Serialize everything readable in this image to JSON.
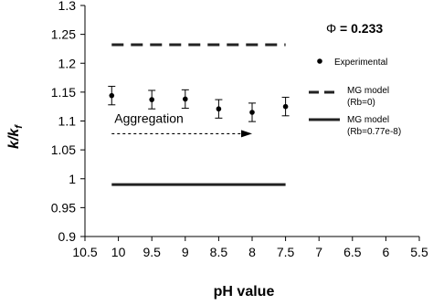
{
  "chart_data": {
    "type": "scatter",
    "xlabel": "pH value",
    "ylabel_main": "k/k",
    "ylabel_sub": "f",
    "x_reversed": true,
    "xlim": [
      10.5,
      5.5
    ],
    "ylim": [
      0.9,
      1.3
    ],
    "x_ticks": [
      10.5,
      10,
      9.5,
      9,
      8.5,
      8,
      7.5,
      7,
      6.5,
      6,
      5.5
    ],
    "y_ticks": [
      0.9,
      0.95,
      1,
      1.05,
      1.1,
      1.15,
      1.2,
      1.25,
      1.3
    ],
    "x_tick_labels": [
      "10.5",
      "10",
      "9.5",
      "9",
      "8.5",
      "8",
      "7.5",
      "7",
      "6.5",
      "6",
      "5.5"
    ],
    "y_tick_labels": [
      "0.9",
      "0.95",
      "1",
      "1.05",
      "1.1",
      "1.15",
      "1.2",
      "1.25",
      "1.3"
    ],
    "grid": false,
    "legend_position": "right",
    "series": [
      {
        "name": "Experimental",
        "style": "points-with-error-bars",
        "x": [
          10.1,
          9.5,
          9.0,
          8.5,
          8.0,
          7.5
        ],
        "y": [
          1.144,
          1.137,
          1.138,
          1.121,
          1.115,
          1.125
        ],
        "error": [
          0.016,
          0.016,
          0.016,
          0.016,
          0.016,
          0.016
        ]
      },
      {
        "name_line1": "MG model",
        "name_line2": "(Rb=0)",
        "style": "dashed",
        "x": [
          10.1,
          7.5
        ],
        "y": [
          1.232,
          1.232
        ]
      },
      {
        "name_line1": "MG model",
        "name_line2": "(Rb=0.77e-8)",
        "style": "solid",
        "x": [
          10.1,
          7.5
        ],
        "y": [
          0.99,
          0.99
        ]
      }
    ],
    "phi_label": "Φ",
    "phi_value": "= 0.233",
    "annotation": {
      "text": "Aggregation",
      "arrow_from": [
        10.1,
        1.078
      ],
      "arrow_to": [
        8.0,
        1.078
      ]
    }
  }
}
